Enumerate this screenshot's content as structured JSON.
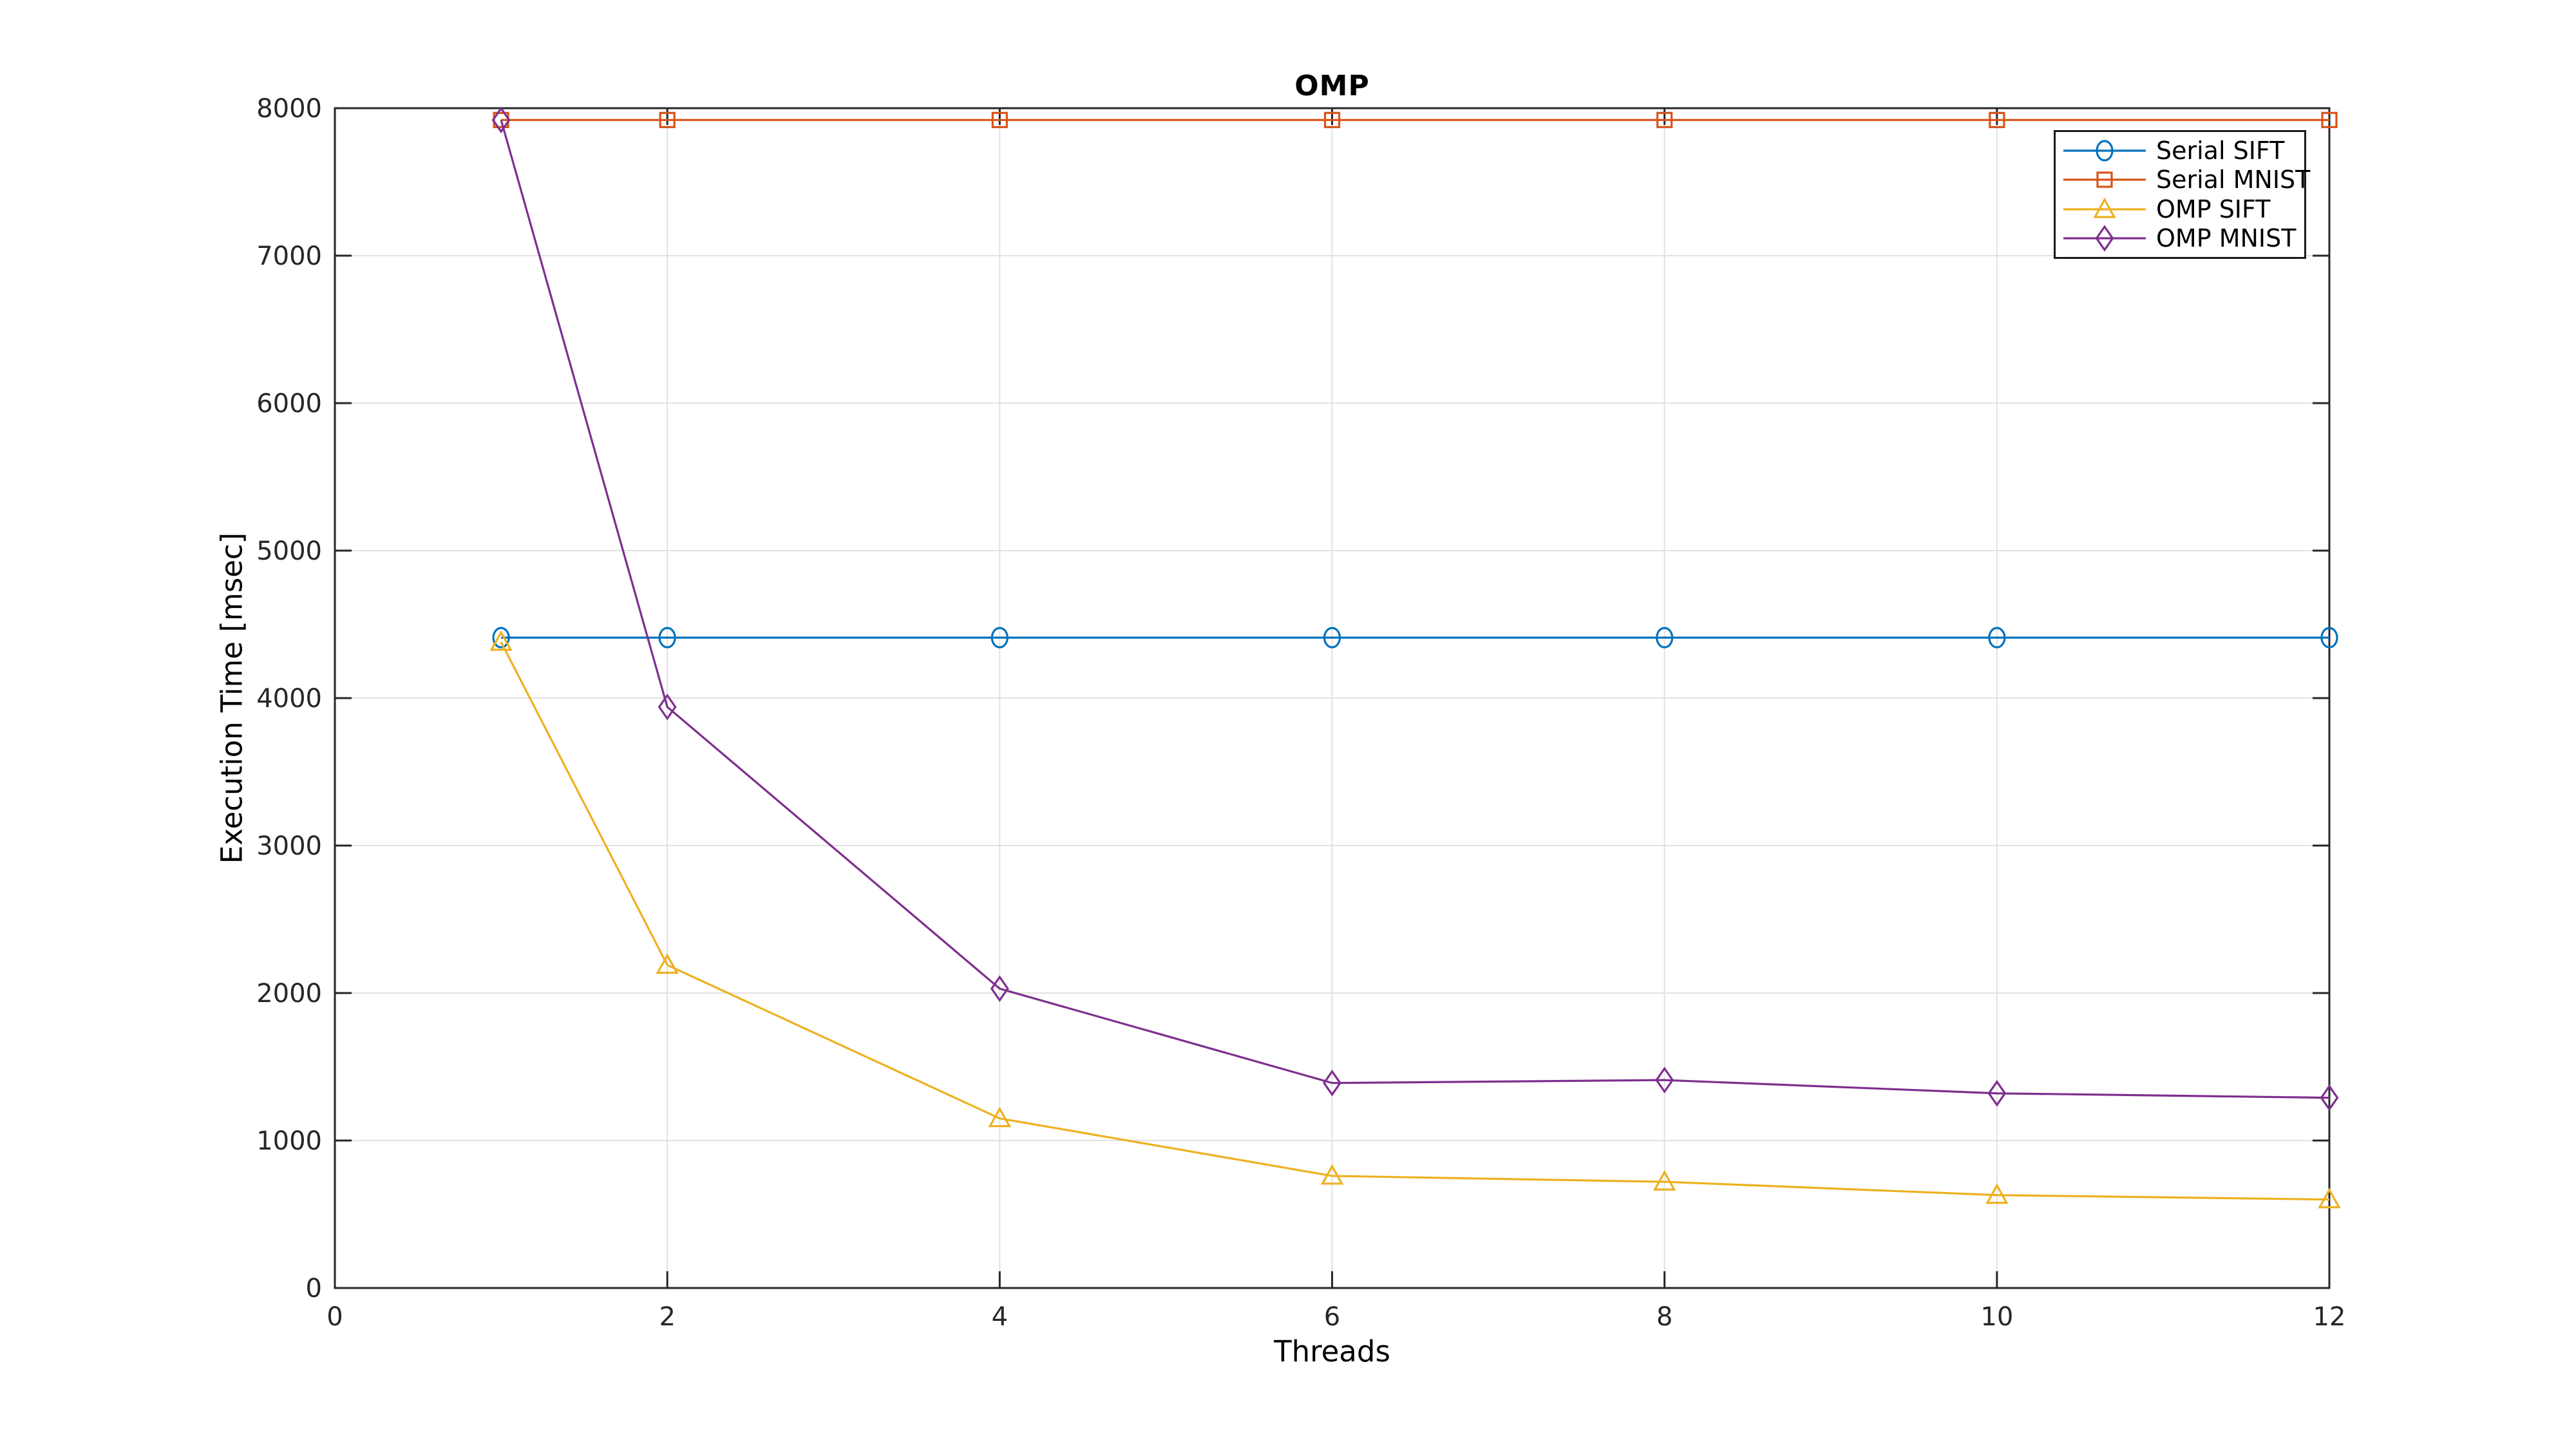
{
  "figure": {
    "background": "#ffffff",
    "axis_color": "#262626",
    "grid_color": "#e2e2e2",
    "text_color": "#000000"
  },
  "chart_data": {
    "type": "line",
    "title": "OMP",
    "xlabel": "Threads",
    "ylabel": "Execution Time [msec]",
    "xlim": [
      0,
      12
    ],
    "ylim": [
      0,
      8000
    ],
    "xticks": [
      0,
      2,
      4,
      6,
      8,
      10,
      12
    ],
    "yticks": [
      0,
      1000,
      2000,
      3000,
      4000,
      5000,
      6000,
      7000,
      8000
    ],
    "grid": true,
    "legend_position": "top-right",
    "x": [
      1,
      2,
      4,
      6,
      8,
      10,
      12
    ],
    "series": [
      {
        "name": "Serial SIFT",
        "color": "#0072BD",
        "marker": "circle",
        "values": [
          4410,
          4410,
          4410,
          4410,
          4410,
          4410,
          4410
        ]
      },
      {
        "name": "Serial MNIST",
        "color": "#D95319",
        "marker": "square",
        "values": [
          7920,
          7920,
          7920,
          7920,
          7920,
          7920,
          7920
        ]
      },
      {
        "name": "OMP SIFT",
        "color": "#EDB120",
        "marker": "triangle",
        "values": [
          4380,
          2190,
          1150,
          760,
          720,
          630,
          600
        ]
      },
      {
        "name": "OMP MNIST",
        "color": "#7E2F8E",
        "marker": "diamond",
        "values": [
          7920,
          3940,
          2030,
          1390,
          1410,
          1320,
          1290
        ]
      }
    ]
  }
}
